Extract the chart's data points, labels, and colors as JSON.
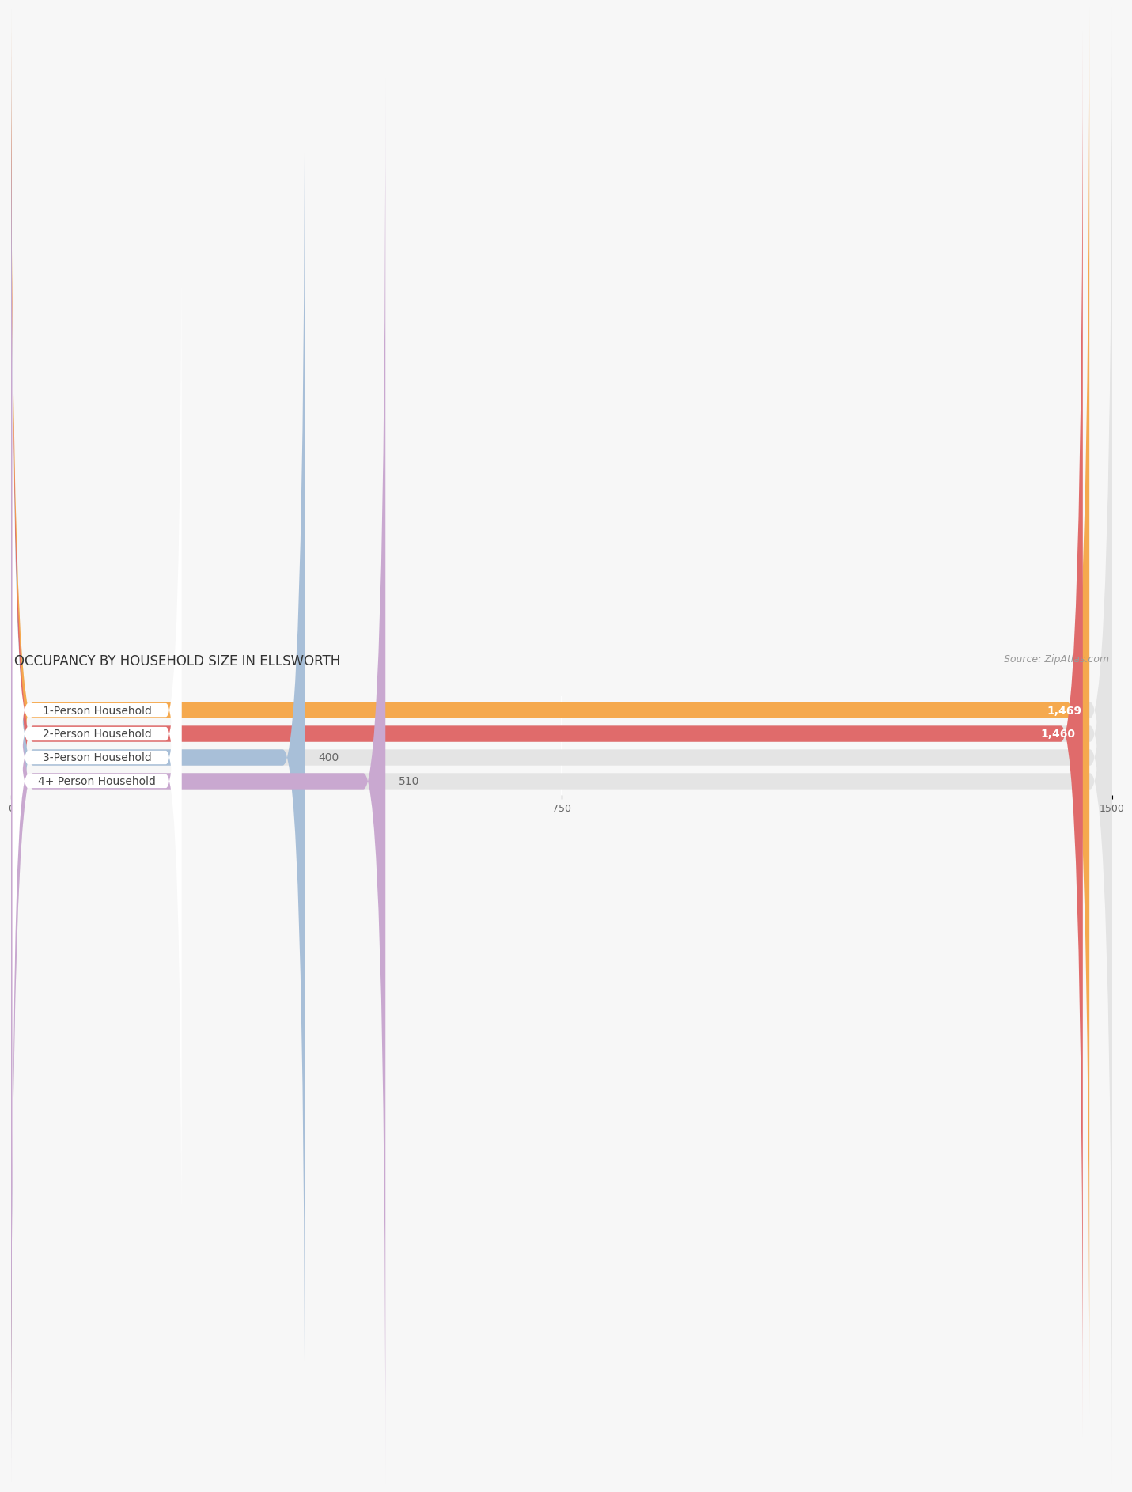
{
  "title": "OCCUPANCY BY HOUSEHOLD SIZE IN ELLSWORTH",
  "source": "Source: ZipAtlas.com",
  "categories": [
    "1-Person Household",
    "2-Person Household",
    "3-Person Household",
    "4+ Person Household"
  ],
  "values": [
    1469,
    1460,
    400,
    510
  ],
  "bar_colors": [
    "#F5A94E",
    "#E06B6B",
    "#A8BFD8",
    "#C9A8D0"
  ],
  "label_colors": [
    "white",
    "white",
    "#555555",
    "#555555"
  ],
  "xlim": [
    0,
    1500
  ],
  "xticks": [
    0,
    750,
    1500
  ],
  "background_color": "#f7f7f7",
  "bar_bg_color": "#e4e4e4",
  "title_fontsize": 12,
  "source_fontsize": 9,
  "label_fontsize": 10,
  "value_fontsize": 10
}
